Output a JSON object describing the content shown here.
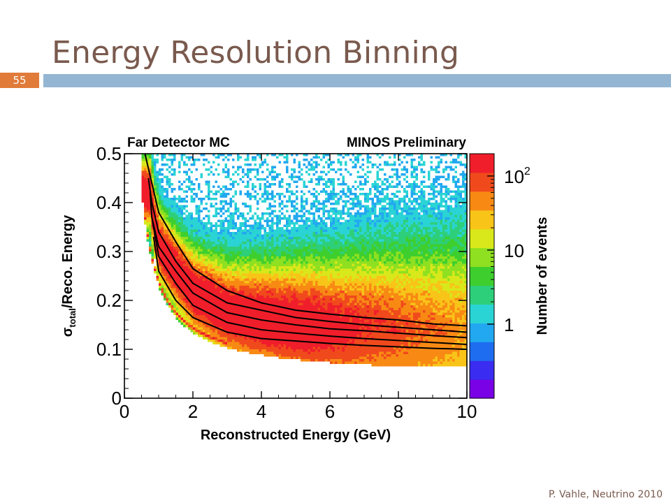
{
  "slide": {
    "title": "Energy Resolution Binning",
    "number": "55",
    "footer": "P. Vahle, Neutrino 2010"
  },
  "colors": {
    "title": "#7a5a4e",
    "title_bar": "#94b6d2",
    "slide_number_bg": "#e07b39"
  },
  "chart_data": {
    "type": "heatmap",
    "annotations": [
      "Far Detector MC",
      "MINOS Preliminary"
    ],
    "xlabel": "Reconstructed Energy (GeV)",
    "ylabel_parts": [
      "σ",
      "total",
      "/Reco. Energy"
    ],
    "xlim": [
      0,
      10
    ],
    "ylim": [
      0,
      0.5
    ],
    "x_ticks": [
      0,
      2,
      4,
      6,
      8,
      10
    ],
    "x_tick_labels": [
      "0",
      "2",
      "4",
      "6",
      "8",
      "10"
    ],
    "y_ticks": [
      0,
      0.1,
      0.2,
      0.3,
      0.4,
      0.5
    ],
    "y_tick_labels": [
      "0",
      "0.1",
      "0.2",
      "0.3",
      "0.4",
      "0.5"
    ],
    "colorbar": {
      "label": "Number of events",
      "scale": "log",
      "range": [
        0.1,
        200
      ],
      "ticks": [
        1,
        10,
        100
      ],
      "tick_labels": [
        {
          "base": "1",
          "exp": ""
        },
        {
          "base": "10",
          "exp": ""
        },
        {
          "base": "10",
          "exp": "2"
        }
      ],
      "colors": [
        "#7a00e6",
        "#3a2cf0",
        "#1e6cf0",
        "#22a8f0",
        "#2ad4d4",
        "#2ecf7a",
        "#3ecf2e",
        "#8ee020",
        "#d8e81a",
        "#f8c418",
        "#f88a14",
        "#f04a1c",
        "#f01e2a"
      ]
    },
    "curves": [
      {
        "name": "",
        "x": [
          0.6,
          0.7,
          0.8,
          1.0,
          1.5,
          2,
          3,
          4,
          5,
          6,
          7,
          8,
          9,
          10
        ],
        "y": [
          0.5,
          0.47,
          0.44,
          0.38,
          0.32,
          0.265,
          0.22,
          0.195,
          0.18,
          0.172,
          0.165,
          0.16,
          0.152,
          0.148
        ]
      },
      {
        "name": "",
        "x": [
          0.7,
          0.8,
          1.0,
          1.5,
          2,
          3,
          4,
          5,
          6,
          7,
          8,
          9,
          10
        ],
        "y": [
          0.45,
          0.4,
          0.34,
          0.28,
          0.235,
          0.195,
          0.18,
          0.165,
          0.157,
          0.15,
          0.145,
          0.14,
          0.135
        ]
      },
      {
        "name": "",
        "x": [
          0.75,
          0.8,
          1.0,
          1.5,
          2,
          3,
          4,
          5,
          6,
          7,
          8,
          9,
          10
        ],
        "y": [
          0.42,
          0.37,
          0.31,
          0.26,
          0.215,
          0.175,
          0.16,
          0.15,
          0.142,
          0.138,
          0.133,
          0.128,
          0.124
        ]
      },
      {
        "name": "",
        "x": [
          0.8,
          0.9,
          1.0,
          1.5,
          2,
          3,
          4,
          5,
          6,
          7,
          8,
          9,
          10
        ],
        "y": [
          0.37,
          0.33,
          0.29,
          0.235,
          0.19,
          0.155,
          0.14,
          0.133,
          0.127,
          0.122,
          0.118,
          0.114,
          0.11
        ]
      },
      {
        "name": "",
        "x": [
          0.85,
          1.0,
          1.5,
          2,
          3,
          4,
          5,
          6,
          7,
          8,
          9,
          10
        ],
        "y": [
          0.33,
          0.26,
          0.2,
          0.165,
          0.135,
          0.122,
          0.117,
          0.112,
          0.108,
          0.105,
          0.102,
          0.1
        ]
      }
    ]
  }
}
